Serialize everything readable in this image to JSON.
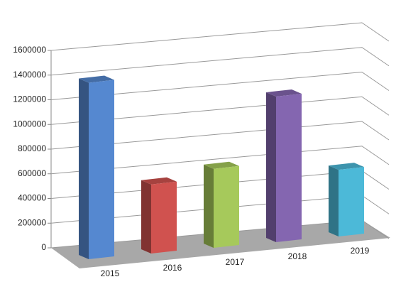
{
  "chart_data": {
    "type": "bar3d",
    "categories": [
      "2015",
      "2016",
      "2017",
      "2018",
      "2019"
    ],
    "values": [
      1430000,
      560000,
      640000,
      1180000,
      540000
    ],
    "colors": [
      "#5588d0",
      "#d0524f",
      "#a6c95b",
      "#8466b0",
      "#4cb9d8"
    ],
    "ylim": [
      0,
      1600000
    ],
    "yticks": [
      0,
      200000,
      400000,
      600000,
      800000,
      1000000,
      1200000,
      1400000,
      1600000
    ],
    "grid": true
  }
}
